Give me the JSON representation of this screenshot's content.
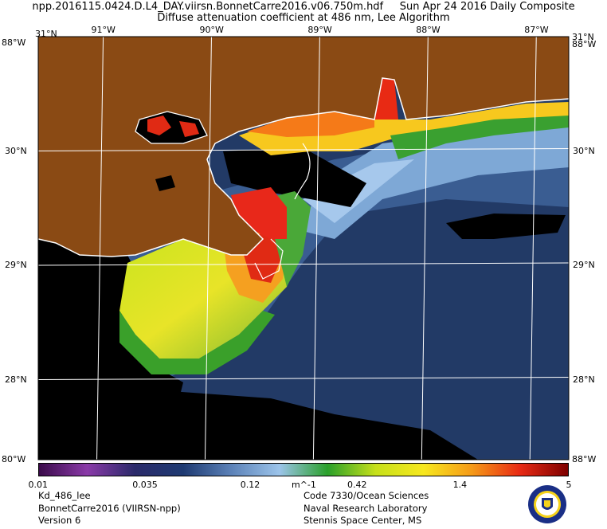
{
  "title_line1": "npp.2016115.0424.D.L4_DAY.viirsn.BonnetCarre2016.v06.750m.hdf     Sun Apr 24 2016 Daily Composite",
  "title_line2": "Diffuse attenuation coefficient at 486 nm, Lee Algorithm",
  "map": {
    "lon_min": -91.6,
    "lon_max": -86.7,
    "lat_min": 27.3,
    "lat_max": 31.0,
    "meridians": [
      {
        "lon": -91,
        "label": "91°W"
      },
      {
        "lon": -90,
        "label": "90°W"
      },
      {
        "lon": -89,
        "label": "89°W"
      },
      {
        "lon": -88,
        "label": "88°W"
      },
      {
        "lon": -87,
        "label": "87°W"
      }
    ],
    "parallels": [
      {
        "lat": 30,
        "label": "30°N"
      },
      {
        "lat": 29,
        "label": "29°N"
      },
      {
        "lat": 28,
        "label": "28°N"
      }
    ],
    "corner_labels": {
      "top_left": "31°N",
      "top_left_2": "88°W",
      "top_right": "31°N",
      "top_right_2": "88°W",
      "bottom_left": "80°W",
      "bottom_right": "88°W"
    },
    "colors": {
      "land": "#8a4a14",
      "no_data": "#000000",
      "coast": "#ffffff",
      "grid": "#ffffff"
    }
  },
  "colorbar": {
    "unit": "m^-1",
    "scale": "log",
    "min": 0.01,
    "max": 5,
    "tick_labels": [
      "0.01",
      "0.035",
      "0.12",
      "0.42",
      "1.4",
      "5"
    ],
    "colors": [
      "#3a0a4a",
      "#8a3aa8",
      "#2a2a6a",
      "#1e3a72",
      "#5c82b8",
      "#9cc4ea",
      "#2aa02a",
      "#c6e01a",
      "#f7e81e",
      "#f59a18",
      "#e82a14",
      "#7e0000"
    ]
  },
  "footer_left": [
    "Kd_486_lee",
    "BonnetCarre2016 (VIIRSN-npp)",
    "Version 6"
  ],
  "footer_right": [
    "Code 7330/Ocean Sciences",
    "Naval Research Laboratory",
    "Stennis Space Center, MS"
  ],
  "seal_icon": "nrl-seal-icon"
}
